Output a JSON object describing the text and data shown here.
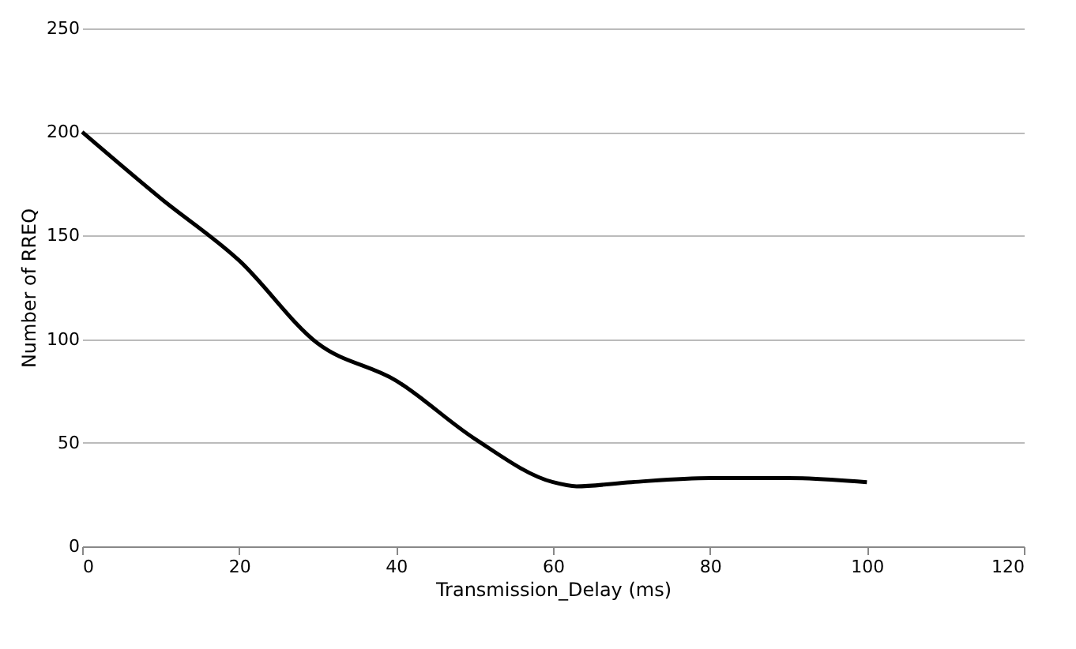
{
  "chart_data": {
    "type": "line",
    "xlabel": "Transmission_Delay (ms)",
    "ylabel": "Number of RREQ",
    "x": [
      0,
      10,
      20,
      30,
      40,
      50,
      60,
      63,
      70,
      80,
      90,
      100
    ],
    "series": [
      {
        "color": "#000000",
        "values": [
          200,
          168,
          138,
          98,
          80,
          52,
          31,
          29,
          31,
          33,
          33,
          31
        ]
      }
    ],
    "xlim": [
      0,
      120
    ],
    "xticks": [
      0,
      20,
      40,
      60,
      80,
      100,
      120
    ],
    "ylim": [
      0,
      250
    ],
    "yticks": [
      0,
      50,
      100,
      150,
      200,
      250
    ],
    "grid": "y",
    "marker": "none",
    "line_style": "solid"
  }
}
